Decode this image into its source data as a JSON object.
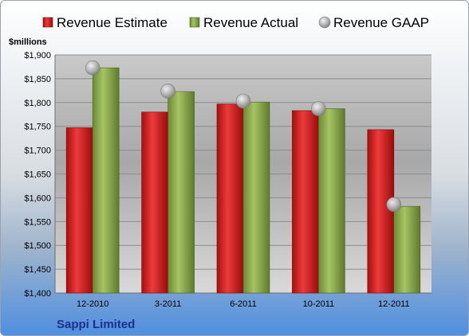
{
  "chart_data": {
    "type": "bar",
    "ylabel": "$millions",
    "categories": [
      "12-2010",
      "3-2011",
      "6-2011",
      "10-2011",
      "12-2011"
    ],
    "ylim": [
      1400,
      1900
    ],
    "yticks": [
      1400,
      1450,
      1500,
      1550,
      1600,
      1650,
      1700,
      1750,
      1800,
      1850,
      1900
    ],
    "ytick_labels": [
      "$1,400",
      "$1,450",
      "$1,500",
      "$1,550",
      "$1,600",
      "$1,650",
      "$1,700",
      "$1,750",
      "$1,800",
      "$1,850",
      "$1,900"
    ],
    "grid": true,
    "legend_position": "top",
    "series": [
      {
        "name": "Revenue Estimate",
        "kind": "bar",
        "color": "#d42a2a",
        "values": [
          1747,
          1780,
          1797,
          1783,
          1743
        ]
      },
      {
        "name": "Revenue Actual",
        "kind": "bar",
        "color": "#8fb050",
        "values": [
          1873,
          1823,
          1801,
          1787,
          1582
        ]
      },
      {
        "name": "Revenue GAAP",
        "kind": "marker",
        "color": "#b8b8b8",
        "values": [
          1873,
          1824,
          1803,
          1787,
          1586
        ]
      }
    ]
  },
  "company": "Sappi Limited"
}
